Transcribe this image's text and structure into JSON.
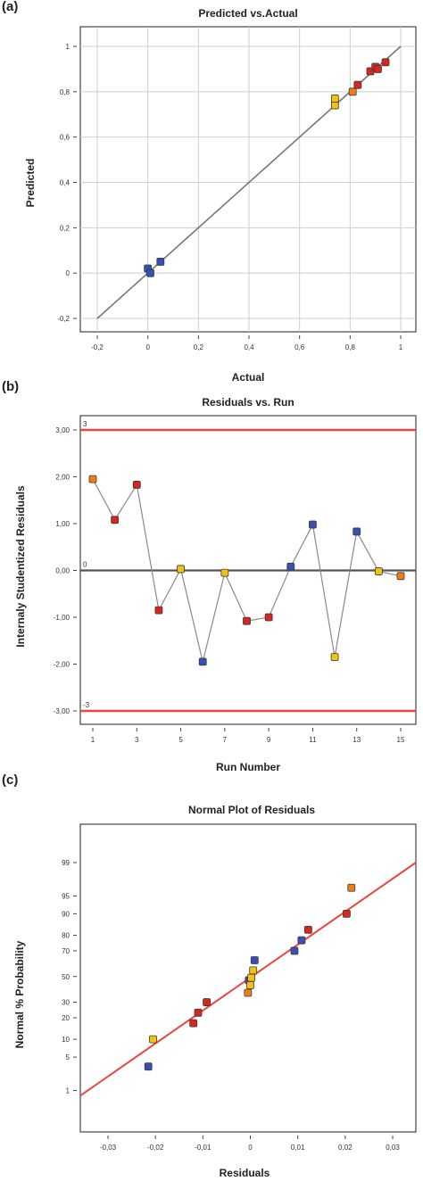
{
  "chart_data": [
    {
      "panel": "(a)",
      "type": "scatter",
      "title": "Predicted vs.Actual",
      "xlabel": "Actual",
      "ylabel": "Predicted",
      "xlim": [
        -0.2,
        1
      ],
      "ylim": [
        -0.2,
        1
      ],
      "xticks": [
        -0.2,
        0,
        0.2,
        0.4,
        0.6,
        0.8,
        1
      ],
      "xtick_labels": [
        "-0,2",
        "0",
        "0,2",
        "0,4",
        "0,6",
        "0,8",
        "1"
      ],
      "yticks": [
        -0.2,
        0,
        0.2,
        0.4,
        0.6,
        0.8,
        1
      ],
      "ytick_labels": [
        "-0,2",
        "0",
        "0,2",
        "0,4",
        "0,6",
        "0,8",
        "1"
      ],
      "grid": true,
      "reference_line": {
        "from": [
          -0.2,
          -0.2
        ],
        "to": [
          1,
          1
        ],
        "color": "#777777"
      },
      "points": [
        {
          "x": 0.0,
          "y": 0.02,
          "color": "#3a4fb5"
        },
        {
          "x": 0.01,
          "y": 0.0,
          "color": "#3a4fb5"
        },
        {
          "x": 0.05,
          "y": 0.05,
          "color": "#3a4fb5"
        },
        {
          "x": 0.74,
          "y": 0.74,
          "color": "#f2c20f"
        },
        {
          "x": 0.74,
          "y": 0.77,
          "color": "#f2c20f"
        },
        {
          "x": 0.81,
          "y": 0.8,
          "color": "#ee7d16"
        },
        {
          "x": 0.83,
          "y": 0.83,
          "color": "#d6261f"
        },
        {
          "x": 0.88,
          "y": 0.89,
          "color": "#d6261f"
        },
        {
          "x": 0.9,
          "y": 0.91,
          "color": "#d6261f"
        },
        {
          "x": 0.91,
          "y": 0.9,
          "color": "#d6261f"
        },
        {
          "x": 0.94,
          "y": 0.93,
          "color": "#d6261f"
        }
      ]
    },
    {
      "panel": "(b)",
      "type": "line",
      "title": "Residuals vs. Run",
      "xlabel": "Run Number",
      "ylabel": "Internaly Studentized Residuals",
      "xlim": [
        0.3,
        15.7
      ],
      "ylim": [
        -3.7,
        3.4
      ],
      "xticks": [
        1,
        3,
        5,
        7,
        9,
        11,
        13,
        15
      ],
      "xtick_labels": [
        "1",
        "3",
        "5",
        "7",
        "9",
        "11",
        "13",
        "15"
      ],
      "yticks": [
        -3,
        -2,
        -1,
        0,
        1,
        2,
        3
      ],
      "ytick_labels": [
        "-3,00",
        "-2,00",
        "-1,00",
        "0,00",
        "1,00",
        "2,00",
        "3,00"
      ],
      "hlines": [
        {
          "y": 3,
          "label": "3",
          "color": "#e8473f"
        },
        {
          "y": 0,
          "label": "0",
          "color": "#555555"
        },
        {
          "y": -3,
          "label": "-3",
          "color": "#e8473f"
        }
      ],
      "points": [
        {
          "x": 1,
          "y": 1.95,
          "color": "#ee7d16"
        },
        {
          "x": 2,
          "y": 1.08,
          "color": "#d6261f"
        },
        {
          "x": 3,
          "y": 1.83,
          "color": "#d6261f"
        },
        {
          "x": 4,
          "y": -0.85,
          "color": "#d6261f"
        },
        {
          "x": 5,
          "y": 0.03,
          "color": "#f2c20f"
        },
        {
          "x": 6,
          "y": -1.95,
          "color": "#3a4fb5"
        },
        {
          "x": 7,
          "y": -0.05,
          "color": "#f2c20f"
        },
        {
          "x": 8,
          "y": -1.08,
          "color": "#d6261f"
        },
        {
          "x": 9,
          "y": -1.0,
          "color": "#d6261f"
        },
        {
          "x": 10,
          "y": 0.08,
          "color": "#3a4fb5"
        },
        {
          "x": 11,
          "y": 0.98,
          "color": "#3a4fb5"
        },
        {
          "x": 12,
          "y": -1.85,
          "color": "#f2c20f"
        },
        {
          "x": 13,
          "y": 0.83,
          "color": "#3a4fb5"
        },
        {
          "x": 14,
          "y": -0.02,
          "color": "#f2c20f"
        },
        {
          "x": 15,
          "y": -0.12,
          "color": "#ee7d16"
        }
      ]
    },
    {
      "panel": "(c)",
      "type": "scatter",
      "title": "Normal Plot of Residuals",
      "xlabel": "Residuals",
      "ylabel": "Normal % Probability",
      "xlim": [
        -0.032,
        0.032
      ],
      "xticks": [
        -0.03,
        -0.02,
        -0.01,
        0,
        0.01,
        0.02,
        0.03
      ],
      "xtick_labels": [
        "-0,03",
        "-0,02",
        "-0,01",
        "0",
        "0,01",
        "0,02",
        "0,03"
      ],
      "yscale": "normal probability",
      "ylim": [
        0.1,
        99.9
      ],
      "yticks": [
        1,
        5,
        10,
        20,
        30,
        50,
        70,
        80,
        90,
        95,
        99
      ],
      "ytick_labels": [
        "1",
        "5",
        "10",
        "20",
        "30",
        "50",
        "70",
        "80",
        "90",
        "95",
        "99"
      ],
      "reference_line": {
        "from": [
          -0.032,
          0.75
        ],
        "to": [
          0.032,
          99.0
        ],
        "color": "#e8473f"
      },
      "points": [
        {
          "x": -0.0215,
          "y": 3.3,
          "color": "#3a4fb5"
        },
        {
          "x": -0.0205,
          "y": 10,
          "color": "#f2c20f"
        },
        {
          "x": -0.012,
          "y": 17,
          "color": "#d6261f"
        },
        {
          "x": -0.011,
          "y": 23,
          "color": "#d6261f"
        },
        {
          "x": -0.0092,
          "y": 30,
          "color": "#d6261f"
        },
        {
          "x": -0.0005,
          "y": 37,
          "color": "#ee7d16"
        },
        {
          "x": -0.0003,
          "y": 47,
          "color": "#3a4fb5"
        },
        {
          "x": 0.0,
          "y": 43,
          "color": "#f2c20f"
        },
        {
          "x": 0.0002,
          "y": 49,
          "color": "#f2c20f"
        },
        {
          "x": 0.0006,
          "y": 55,
          "color": "#f2c20f"
        },
        {
          "x": 0.0009,
          "y": 63,
          "color": "#3a4fb5"
        },
        {
          "x": 0.0093,
          "y": 70,
          "color": "#3a4fb5"
        },
        {
          "x": 0.0108,
          "y": 77,
          "color": "#3a4fb5"
        },
        {
          "x": 0.0122,
          "y": 83,
          "color": "#d6261f"
        },
        {
          "x": 0.0203,
          "y": 90,
          "color": "#d6261f"
        },
        {
          "x": 0.0213,
          "y": 96.5,
          "color": "#ee7d16"
        }
      ]
    }
  ]
}
